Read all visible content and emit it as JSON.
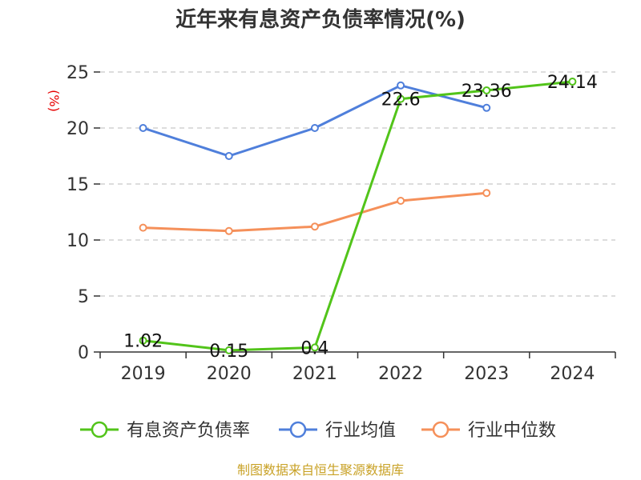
{
  "chart_data": {
    "type": "line",
    "title": "近年来有息资产负债率情况(%)",
    "ylabel": "(%)",
    "categories": [
      "2019",
      "2020",
      "2021",
      "2022",
      "2023",
      "2024"
    ],
    "ylim": [
      0,
      25
    ],
    "yticks": [
      0,
      5,
      10,
      15,
      20,
      25
    ],
    "grid": true,
    "legend_position": "bottom",
    "series": [
      {
        "name": "有息资产负债率",
        "color": "#52c41a",
        "values": [
          1.02,
          0.15,
          0.4,
          22.6,
          23.36,
          24.14
        ],
        "labels": [
          "1.02",
          "0.15",
          "0.4",
          "22.6",
          "23.36",
          "24.14"
        ]
      },
      {
        "name": "行业均值",
        "color": "#4f7fdb",
        "values": [
          20.0,
          17.5,
          20.0,
          23.8,
          21.8,
          null
        ],
        "labels": []
      },
      {
        "name": "行业中位数",
        "color": "#f5905a",
        "values": [
          11.1,
          10.8,
          11.2,
          13.5,
          14.2,
          null
        ],
        "labels": []
      }
    ],
    "source": "制图数据来自恒生聚源数据库"
  }
}
